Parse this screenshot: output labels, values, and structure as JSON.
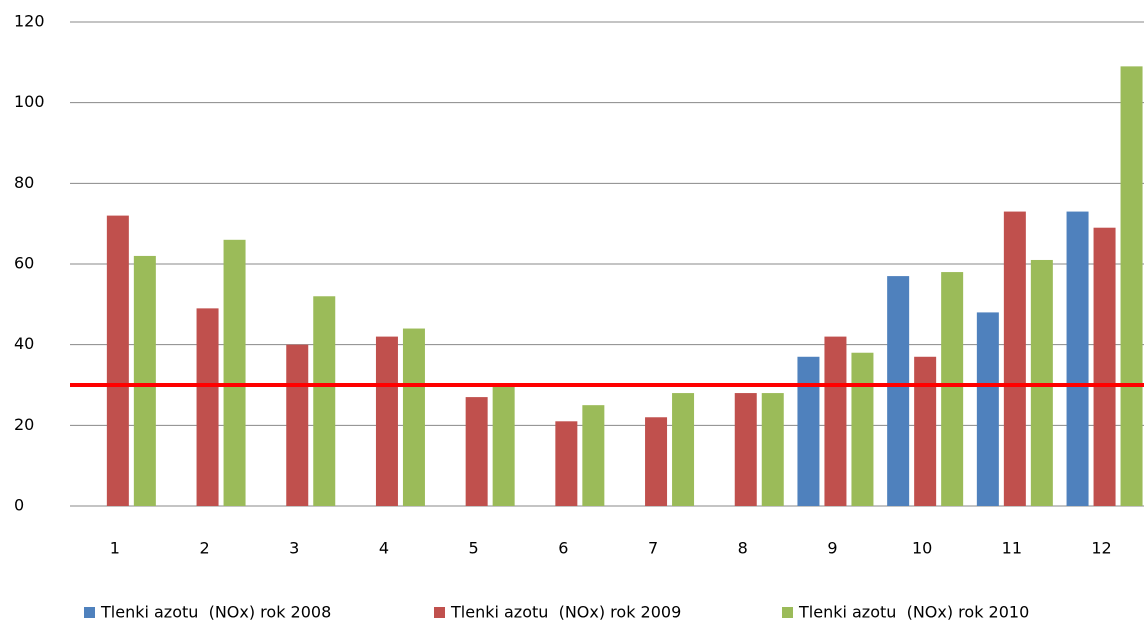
{
  "chart_data": {
    "type": "bar",
    "categories": [
      "1",
      "2",
      "3",
      "4",
      "5",
      "6",
      "7",
      "8",
      "9",
      "10",
      "11",
      "12"
    ],
    "series": [
      {
        "name": "Tlenki azotu  (NOx) rok 2008",
        "color": "#4f81bd",
        "values": [
          null,
          null,
          null,
          null,
          null,
          null,
          null,
          null,
          37,
          57,
          48,
          73
        ]
      },
      {
        "name": "Tlenki azotu  (NOx) rok 2009",
        "color": "#c0504d",
        "values": [
          72,
          49,
          40,
          42,
          27,
          21,
          22,
          28,
          42,
          37,
          73,
          69
        ]
      },
      {
        "name": "Tlenki azotu  (NOx) rok 2010",
        "color": "#9bbb59",
        "values": [
          62,
          66,
          52,
          44,
          30,
          25,
          28,
          28,
          38,
          58,
          61,
          109
        ]
      }
    ],
    "threshold": 30,
    "threshold_color": "#ff0000",
    "ylim": [
      0,
      120
    ],
    "yticks": [
      0,
      20,
      40,
      60,
      80,
      100,
      120
    ],
    "grid": true,
    "legend": "bottom"
  }
}
